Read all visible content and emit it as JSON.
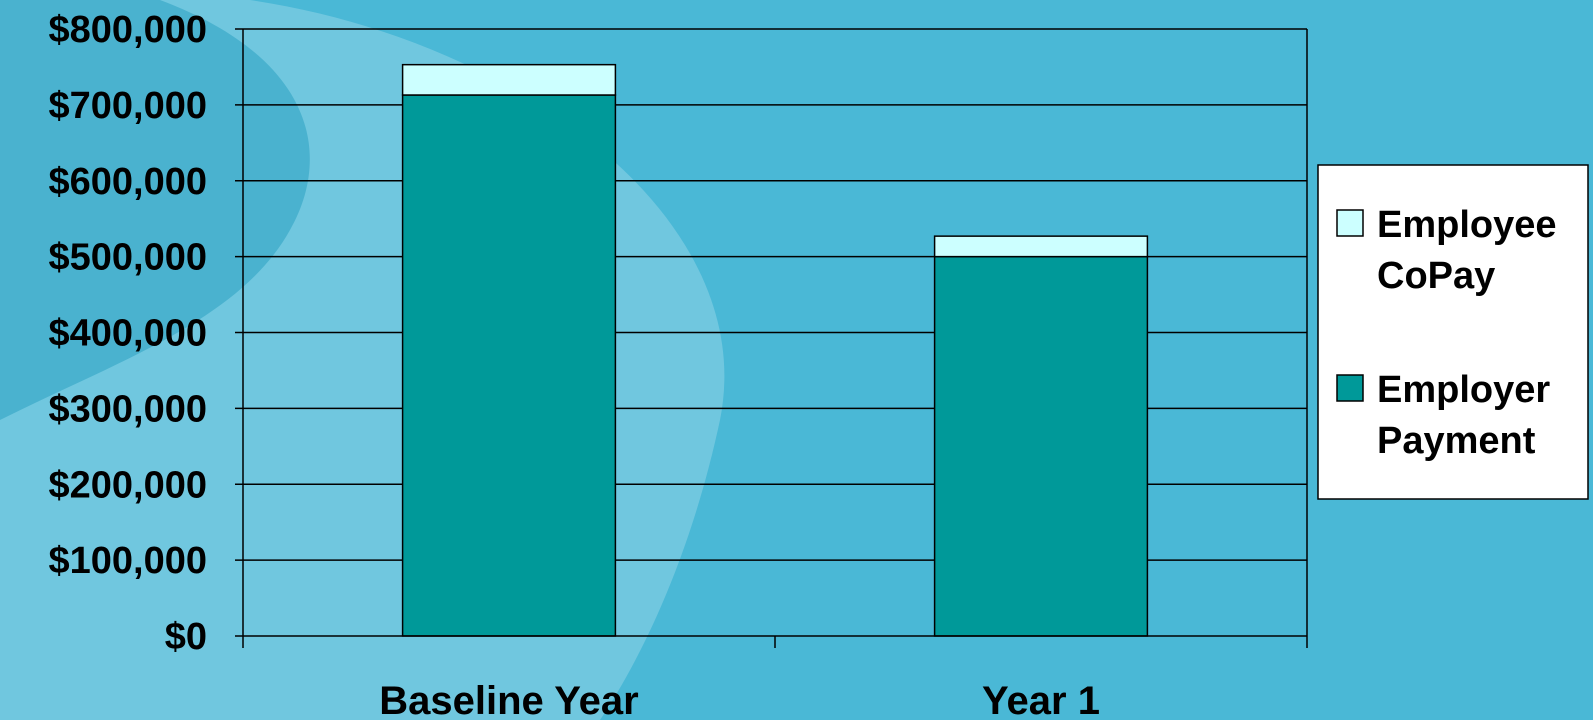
{
  "colors": {
    "background": "#4ab8d6",
    "swirl_light": "#8fd3e8",
    "employer": "#009999",
    "employee": "#ccffff",
    "gridline": "#000000"
  },
  "chart_data": {
    "type": "bar",
    "stacked": true,
    "categories": [
      "Baseline Year",
      "Year 1"
    ],
    "series": [
      {
        "name": "Employer Payment",
        "values": [
          713000,
          500000
        ],
        "color": "#009999"
      },
      {
        "name": "Employee CoPay",
        "values": [
          40000,
          27000
        ],
        "color": "#ccffff"
      }
    ],
    "ylim": [
      0,
      800000
    ],
    "yticks": [
      0,
      100000,
      200000,
      300000,
      400000,
      500000,
      600000,
      700000,
      800000
    ],
    "ytick_labels": [
      "$0",
      "$100,000",
      "$200,000",
      "$300,000",
      "$400,000",
      "$500,000",
      "$600,000",
      "$700,000",
      "$800,000"
    ],
    "grid": true,
    "legend_position": "right",
    "legend": [
      {
        "lines": [
          "Employee",
          "CoPay"
        ],
        "color": "#ccffff"
      },
      {
        "lines": [
          "Employer",
          "Payment"
        ],
        "color": "#009999"
      }
    ],
    "title": "",
    "xlabel": "",
    "ylabel": ""
  }
}
